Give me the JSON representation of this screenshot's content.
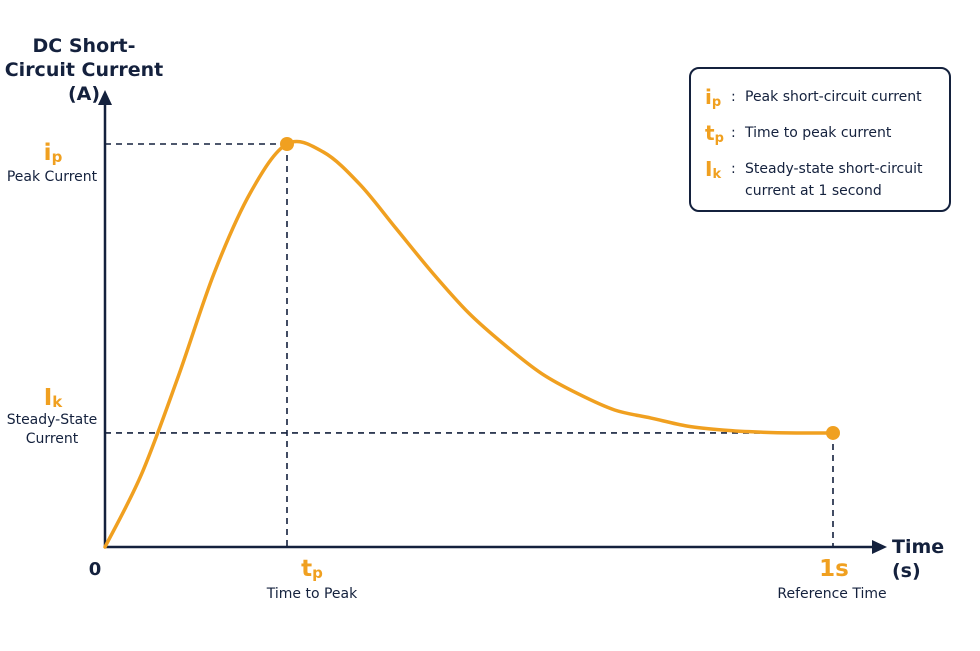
{
  "colors": {
    "axis": "#14213d",
    "curve": "#f0a020"
  },
  "chart_data": {
    "type": "line",
    "title": "DC Short-Circuit Current (A)",
    "xlabel": "Time (s)",
    "ylabel": "DC Short-Circuit Current (A)",
    "grid": false,
    "legend_position": "top-right",
    "x": [
      0,
      0.05,
      0.1,
      0.15,
      0.2,
      0.25,
      0.3,
      0.35,
      0.4,
      0.45,
      0.5,
      0.55,
      0.6,
      0.65,
      0.7,
      0.75,
      0.8,
      0.85,
      0.9,
      0.95,
      1.0
    ],
    "y": [
      0,
      0.18,
      0.42,
      0.68,
      0.88,
      1.0,
      0.98,
      0.9,
      0.79,
      0.68,
      0.58,
      0.5,
      0.43,
      0.38,
      0.34,
      0.32,
      0.3,
      0.29,
      0.285,
      0.283,
      0.283
    ],
    "peak": {
      "x": 0.25,
      "y": 1.0
    },
    "steady": {
      "x": 1.0,
      "y": 0.283
    },
    "y_annotations": [
      {
        "symbol": "i",
        "subscript": "p",
        "caption": "Peak Current"
      },
      {
        "symbol": "I",
        "subscript": "k",
        "caption_line1": "Steady-State",
        "caption_line2": "Current"
      }
    ],
    "x_annotations": [
      {
        "symbol": "0"
      },
      {
        "symbol": "t",
        "subscript": "p",
        "caption": "Time to Peak"
      },
      {
        "symbol": "1s",
        "caption": "Reference Time"
      }
    ],
    "legend": [
      {
        "symbol": "i",
        "subscript": "p",
        "text": "Peak short-circuit current"
      },
      {
        "symbol": "t",
        "subscript": "p",
        "text": "Time to peak current"
      },
      {
        "symbol": "I",
        "subscript": "k",
        "text_line1": "Steady-state short-circuit",
        "text_line2": "current at 1 second"
      }
    ]
  }
}
